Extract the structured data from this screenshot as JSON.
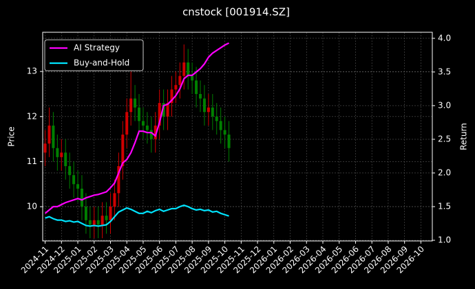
{
  "chart_data": {
    "type": "candlestick",
    "title": "cnstock [001914.SZ]",
    "y_label": "Price",
    "y2_label": "Return",
    "x": [
      0,
      0.25,
      0.5,
      0.75,
      1,
      1.25,
      1.5,
      1.75,
      2,
      2.25,
      2.5,
      2.75,
      3,
      3.25,
      3.5,
      3.75,
      4,
      4.25,
      4.5,
      4.75,
      5,
      5.25,
      5.5,
      5.75,
      6,
      6.25,
      6.5,
      6.75,
      7,
      7.25,
      7.5,
      7.75,
      8,
      8.25,
      8.5,
      8.75,
      9,
      9.25,
      9.5,
      9.75,
      10,
      10.25,
      10.5,
      10.75,
      11,
      11.25
    ],
    "open": [
      11.2,
      11.4,
      11.8,
      11.3,
      11.1,
      11.2,
      10.9,
      10.7,
      10.5,
      10.4,
      10.0,
      9.7,
      9.6,
      9.7,
      9.6,
      9.8,
      9.7,
      10.0,
      10.3,
      10.9,
      11.6,
      12.1,
      12.4,
      12.2,
      11.9,
      11.8,
      11.7,
      11.5,
      11.8,
      12.3,
      12.0,
      12.3,
      12.6,
      12.7,
      12.9,
      13.2,
      12.9,
      12.8,
      12.5,
      12.4,
      12.1,
      12.2,
      12.0,
      11.9,
      11.7,
      11.6
    ],
    "high": [
      11.7,
      12.2,
      12.1,
      11.6,
      11.5,
      11.5,
      11.2,
      11.0,
      10.8,
      10.7,
      10.3,
      10.0,
      10.0,
      10.0,
      10.1,
      10.1,
      10.3,
      10.6,
      11.2,
      11.9,
      12.4,
      13.0,
      12.7,
      12.5,
      12.2,
      12.1,
      12.0,
      12.1,
      12.6,
      12.6,
      12.6,
      12.9,
      13.0,
      13.2,
      13.6,
      13.5,
      13.2,
      13.1,
      12.8,
      12.7,
      12.5,
      12.5,
      12.3,
      12.2,
      12.0,
      11.9
    ],
    "low": [
      10.9,
      11.1,
      11.0,
      10.8,
      10.8,
      10.6,
      10.4,
      10.2,
      10.1,
      9.7,
      9.4,
      9.3,
      9.3,
      9.3,
      9.3,
      9.4,
      9.4,
      9.7,
      10.0,
      10.6,
      11.3,
      11.8,
      11.9,
      11.6,
      11.5,
      11.4,
      11.2,
      11.2,
      11.5,
      11.7,
      11.7,
      12.0,
      12.3,
      12.4,
      12.6,
      12.6,
      12.5,
      12.2,
      12.1,
      11.8,
      11.8,
      11.7,
      11.6,
      11.4,
      11.3,
      11.0
    ],
    "close": [
      11.4,
      11.8,
      11.3,
      11.1,
      11.2,
      10.9,
      10.7,
      10.5,
      10.4,
      10.0,
      9.7,
      9.6,
      9.7,
      9.6,
      9.8,
      9.7,
      10.0,
      10.3,
      10.9,
      11.6,
      12.1,
      12.4,
      12.2,
      11.9,
      11.8,
      11.7,
      11.5,
      11.8,
      12.3,
      12.0,
      12.3,
      12.6,
      12.7,
      12.9,
      13.2,
      12.9,
      12.8,
      12.5,
      12.4,
      12.1,
      12.2,
      12.0,
      11.9,
      11.7,
      11.6,
      11.3
    ],
    "up_color": "#d00000",
    "down_color": "#008000",
    "series": [
      {
        "name": "AI Strategy",
        "color": "#ff00ff",
        "axis": "y2",
        "values": [
          1.4,
          1.45,
          1.5,
          1.5,
          1.53,
          1.56,
          1.58,
          1.6,
          1.62,
          1.6,
          1.63,
          1.65,
          1.67,
          1.68,
          1.7,
          1.72,
          1.78,
          1.85,
          2.0,
          2.15,
          2.2,
          2.3,
          2.45,
          2.62,
          2.62,
          2.6,
          2.6,
          2.55,
          2.75,
          3.0,
          3.02,
          3.08,
          3.15,
          3.25,
          3.4,
          3.45,
          3.45,
          3.5,
          3.55,
          3.62,
          3.72,
          3.78,
          3.82,
          3.86,
          3.9,
          3.93
        ]
      },
      {
        "name": "Buy-and-Hold",
        "color": "#00e5ff",
        "axis": "y2",
        "values": [
          1.33,
          1.35,
          1.32,
          1.3,
          1.3,
          1.28,
          1.29,
          1.27,
          1.28,
          1.25,
          1.22,
          1.21,
          1.22,
          1.21,
          1.22,
          1.23,
          1.28,
          1.35,
          1.42,
          1.45,
          1.48,
          1.46,
          1.43,
          1.4,
          1.4,
          1.43,
          1.41,
          1.44,
          1.46,
          1.43,
          1.45,
          1.47,
          1.47,
          1.5,
          1.52,
          1.5,
          1.47,
          1.45,
          1.46,
          1.44,
          1.45,
          1.42,
          1.43,
          1.4,
          1.38,
          1.36
        ]
      }
    ],
    "xlim": [
      -0.15,
      23.7
    ],
    "xticks": [
      {
        "value": 0,
        "label": "2024-11"
      },
      {
        "value": 1,
        "label": "2024-12"
      },
      {
        "value": 2,
        "label": "2025-01"
      },
      {
        "value": 3,
        "label": "2025-02"
      },
      {
        "value": 4,
        "label": "2025-03"
      },
      {
        "value": 5,
        "label": "2025-04"
      },
      {
        "value": 6,
        "label": "2025-05"
      },
      {
        "value": 7,
        "label": "2025-06"
      },
      {
        "value": 8,
        "label": "2025-07"
      },
      {
        "value": 9,
        "label": "2025-08"
      },
      {
        "value": 10,
        "label": "2025-09"
      },
      {
        "value": 11,
        "label": "2025-10"
      },
      {
        "value": 12,
        "label": "2025-11"
      },
      {
        "value": 13,
        "label": "2025-12"
      },
      {
        "value": 14,
        "label": "2026-01"
      },
      {
        "value": 15,
        "label": "2026-02"
      },
      {
        "value": 16,
        "label": "2026-03"
      },
      {
        "value": 17,
        "label": "2026-04"
      },
      {
        "value": 18,
        "label": "2026-05"
      },
      {
        "value": 19,
        "label": "2026-06"
      },
      {
        "value": 20,
        "label": "2026-07"
      },
      {
        "value": 21,
        "label": "2026-08"
      },
      {
        "value": 22,
        "label": "2026-09"
      },
      {
        "value": 23,
        "label": "2026-10"
      }
    ],
    "ylim": [
      9.24,
      13.87
    ],
    "yticks": [
      10,
      11,
      12,
      13
    ],
    "y2lim": [
      0.99,
      4.09
    ],
    "y2ticks": [
      {
        "value": 1,
        "label": "1.0"
      },
      {
        "value": 1.5,
        "label": "1.5"
      },
      {
        "value": 2,
        "label": "2.0"
      },
      {
        "value": 2.5,
        "label": "2.5"
      },
      {
        "value": 3,
        "label": "3.0"
      },
      {
        "value": 3.5,
        "label": "3.5"
      },
      {
        "value": 4,
        "label": "4.0"
      }
    ],
    "grid": true,
    "legend": "upper left"
  }
}
